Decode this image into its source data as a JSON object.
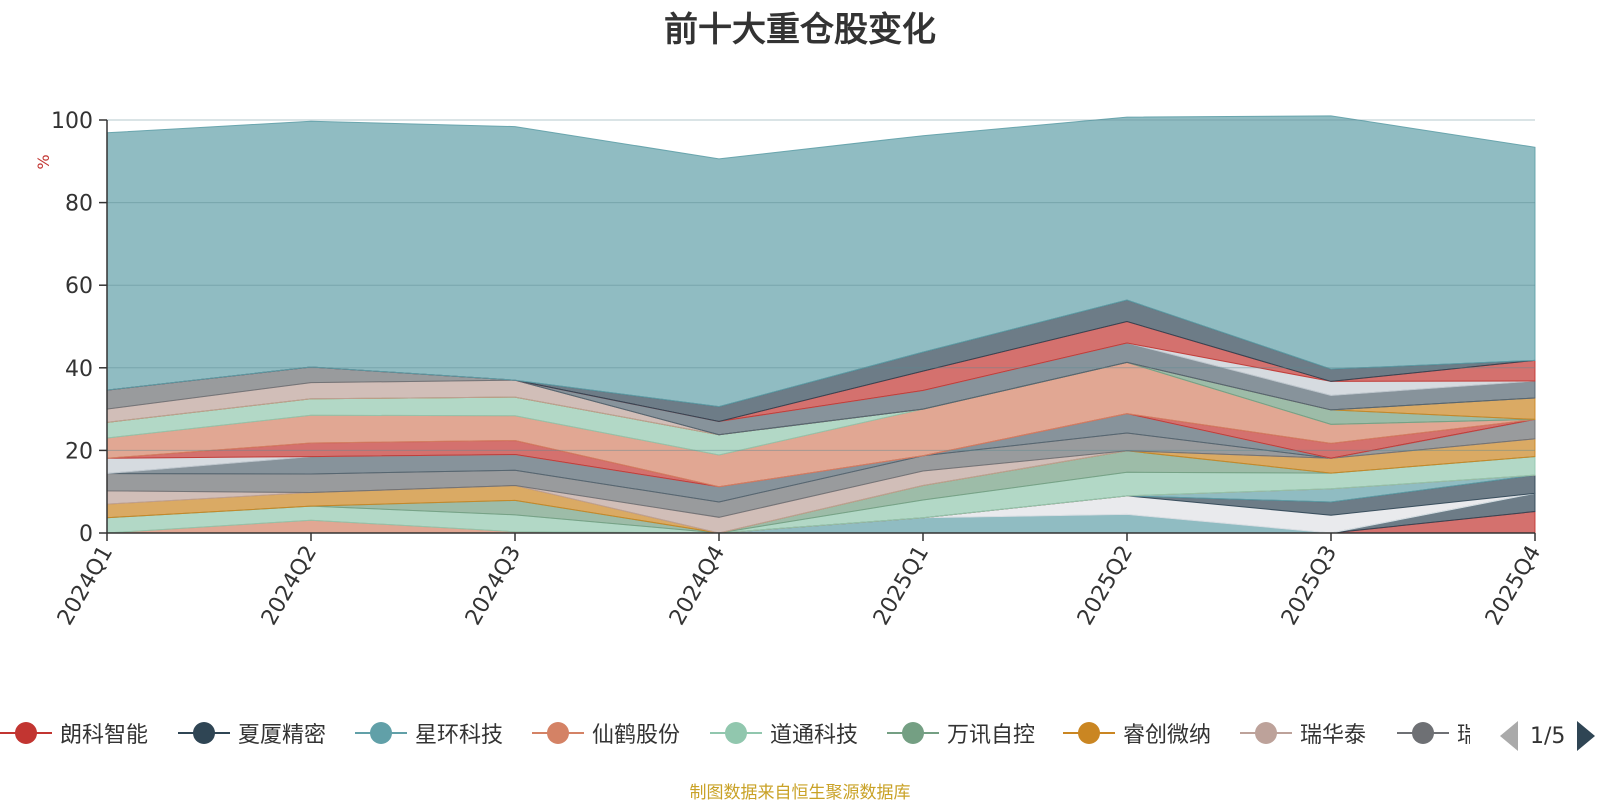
{
  "title": "前十大重仓股变化",
  "footer": "制图数据来自恒生聚源数据库",
  "pager": {
    "text": "1/5"
  },
  "chart_data": {
    "type": "area",
    "stacked": true,
    "title": "前十大重仓股变化",
    "ylabel": "%",
    "ylim": [
      0,
      100
    ],
    "yticks": [
      0,
      20,
      40,
      60,
      80,
      100
    ],
    "grid": true,
    "legend_position": "bottom",
    "categories": [
      "2024Q1",
      "2024Q2",
      "2024Q3",
      "2024Q4",
      "2025Q1",
      "2025Q2",
      "2025Q3",
      "2025Q4"
    ],
    "series": [
      {
        "name": "",
        "color": "#c23531",
        "values": [
          0,
          0,
          0,
          0,
          0,
          0,
          0,
          5.2
        ]
      },
      {
        "name": "",
        "color": "#2f4554",
        "values": [
          0,
          0,
          0,
          0,
          0,
          0,
          0,
          4.4
        ]
      },
      {
        "name": "",
        "color": "#dfe1e6",
        "values": [
          0,
          0,
          0,
          0,
          0,
          0,
          0,
          0
        ]
      },
      {
        "name": "",
        "color": "#61a0a8",
        "values": [
          0,
          0,
          0,
          0,
          3.7,
          4.5,
          0,
          0
        ]
      },
      {
        "name": "",
        "color": "#dfe1e6",
        "values": [
          0,
          0,
          0,
          0,
          0,
          4.5,
          4.3,
          0
        ]
      },
      {
        "name": "",
        "color": "#2f4554",
        "values": [
          0,
          0,
          0,
          0,
          0,
          0,
          3.2,
          4.4
        ]
      },
      {
        "name": "",
        "color": "#61a0a8",
        "values": [
          0,
          0,
          0,
          0,
          0,
          0,
          3.2,
          0
        ]
      },
      {
        "name": "",
        "color": "#d48265",
        "values": [
          0,
          3.1,
          0.3,
          0,
          0,
          0,
          0,
          0
        ]
      },
      {
        "name": "",
        "color": "#91c7ae",
        "values": [
          3.7,
          3.4,
          4.1,
          0,
          4.3,
          5.7,
          3.8,
          4.5
        ]
      },
      {
        "name": "",
        "color": "#749f83",
        "values": [
          0,
          0,
          3.5,
          0,
          3.5,
          5.2,
          0,
          0
        ]
      },
      {
        "name": "",
        "color": "#ca8622",
        "values": [
          3.3,
          3.3,
          3.6,
          0,
          0,
          0,
          3.6,
          4.3
        ]
      },
      {
        "name": "",
        "color": "#bda29a",
        "values": [
          3.2,
          0,
          0,
          3.8,
          3.5,
          0,
          0,
          0
        ]
      },
      {
        "name": "",
        "color": "#6e7074",
        "values": [
          4.2,
          4.5,
          3.7,
          3.7,
          3.7,
          4.3,
          0,
          4.7
        ]
      },
      {
        "name": "",
        "color": "#546570",
        "values": [
          0,
          4.2,
          3.8,
          3.7,
          0,
          4.7,
          0,
          0
        ]
      },
      {
        "name": "",
        "color": "#c4ccd3",
        "values": [
          3.7,
          0,
          0,
          0,
          0,
          0,
          0,
          0
        ]
      },
      {
        "name": "",
        "color": "#c23531",
        "values": [
          0,
          3.3,
          3.4,
          0,
          0,
          0,
          3.6,
          0
        ]
      },
      {
        "name": "",
        "color": "#d48265",
        "values": [
          4.9,
          6.7,
          6.0,
          7.7,
          11.3,
          12.4,
          4.6,
          0
        ]
      },
      {
        "name": "",
        "color": "#91c7ae",
        "values": [
          3.8,
          4.0,
          4.5,
          4.9,
          0,
          0,
          0,
          0
        ]
      },
      {
        "name": "",
        "color": "#749f83",
        "values": [
          0,
          0,
          0,
          0,
          0,
          0,
          3.5,
          0
        ]
      },
      {
        "name": "",
        "color": "#ca8622",
        "values": [
          0,
          0,
          0,
          0,
          0,
          0,
          0,
          5.2
        ]
      },
      {
        "name": "",
        "color": "#bda29a",
        "values": [
          3.2,
          3.9,
          4.1,
          0,
          0,
          0,
          0,
          0
        ]
      },
      {
        "name": "",
        "color": "#6e7074",
        "values": [
          4.6,
          3.8,
          0,
          0,
          0,
          0,
          0,
          0
        ]
      },
      {
        "name": "",
        "color": "#546570",
        "values": [
          0,
          0,
          0,
          3.2,
          4.5,
          4.7,
          3.5,
          4.1
        ]
      },
      {
        "name": "",
        "color": "#c4ccd3",
        "values": [
          0,
          0,
          0,
          0,
          0,
          0,
          3.4,
          0
        ]
      },
      {
        "name": "",
        "color": "#c23531",
        "values": [
          0,
          0,
          0,
          0,
          4.7,
          5.2,
          0,
          5.0
        ]
      },
      {
        "name": "",
        "color": "#2f4554",
        "values": [
          0,
          0,
          0,
          3.6,
          4.6,
          5.2,
          3.0,
          0
        ]
      },
      {
        "name": "",
        "color": "#61a0a8",
        "values": [
          62.3,
          59.5,
          61.4,
          60.0,
          52.4,
          44.3,
          61.3,
          51.6
        ]
      }
    ],
    "legend": [
      {
        "name": "朗科智能",
        "color": "#c23531"
      },
      {
        "name": "夏厦精密",
        "color": "#2f4554"
      },
      {
        "name": "星环科技",
        "color": "#61a0a8"
      },
      {
        "name": "仙鹤股份",
        "color": "#d48265"
      },
      {
        "name": "道通科技",
        "color": "#91c7ae"
      },
      {
        "name": "万讯自控",
        "color": "#749f83"
      },
      {
        "name": "睿创微纳",
        "color": "#ca8622"
      },
      {
        "name": "瑞华泰",
        "color": "#bda29a"
      },
      {
        "name": "瑞芯微",
        "color": "#6e7074"
      }
    ]
  }
}
